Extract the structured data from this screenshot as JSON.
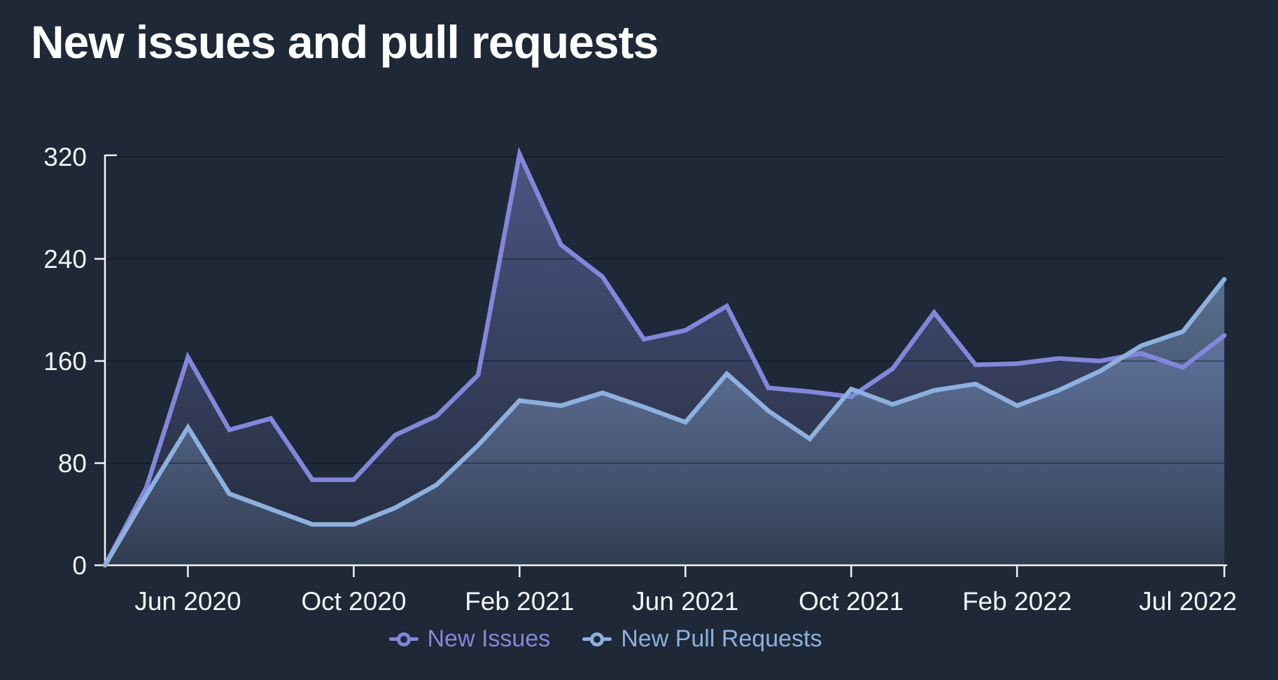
{
  "title": "New issues and pull requests",
  "chart_data": {
    "type": "area",
    "x": [
      "Apr 2020",
      "May 2020",
      "Jun 2020",
      "Jul 2020",
      "Aug 2020",
      "Sep 2020",
      "Oct 2020",
      "Nov 2020",
      "Dec 2020",
      "Jan 2021",
      "Feb 2021",
      "Mar 2021",
      "Apr 2021",
      "May 2021",
      "Jun 2021",
      "Jul 2021",
      "Aug 2021",
      "Sep 2021",
      "Oct 2021",
      "Nov 2021",
      "Dec 2021",
      "Jan 2022",
      "Feb 2022",
      "Mar 2022",
      "Apr 2022",
      "May 2022",
      "Jun 2022",
      "Jul 2022"
    ],
    "series": [
      {
        "name": "New Issues",
        "color": "#8287db",
        "values": [
          0,
          61,
          163,
          106,
          115,
          67,
          67,
          102,
          117,
          149,
          322,
          251,
          226,
          177,
          184,
          203,
          139,
          136,
          132,
          154,
          198,
          157,
          158,
          162,
          160,
          166,
          155,
          180
        ]
      },
      {
        "name": "New Pull Requests",
        "color": "#8db0de",
        "values": [
          0,
          55,
          108,
          56,
          44,
          32,
          32,
          45,
          63,
          94,
          129,
          125,
          135,
          124,
          112,
          150,
          121,
          99,
          138,
          126,
          137,
          142,
          125,
          137,
          152,
          172,
          183,
          224
        ]
      }
    ],
    "x_tick_labels": [
      "Jun 2020",
      "Oct 2020",
      "Feb 2021",
      "Jun 2021",
      "Oct 2021",
      "Feb 2022",
      "Jul 2022"
    ],
    "x_tick_indices": [
      2,
      6,
      10,
      14,
      18,
      22,
      27
    ],
    "y_ticks": [
      0,
      80,
      160,
      240,
      320
    ],
    "ylim": [
      0,
      320
    ],
    "grid": "horizontal-faint",
    "legend_position": "bottom-center",
    "colors": {
      "background": "#1f2836",
      "axis": "#f2f4f7",
      "tick_label": "#f2f4f7",
      "gridline": "rgba(9,13,21,0.38)"
    }
  }
}
